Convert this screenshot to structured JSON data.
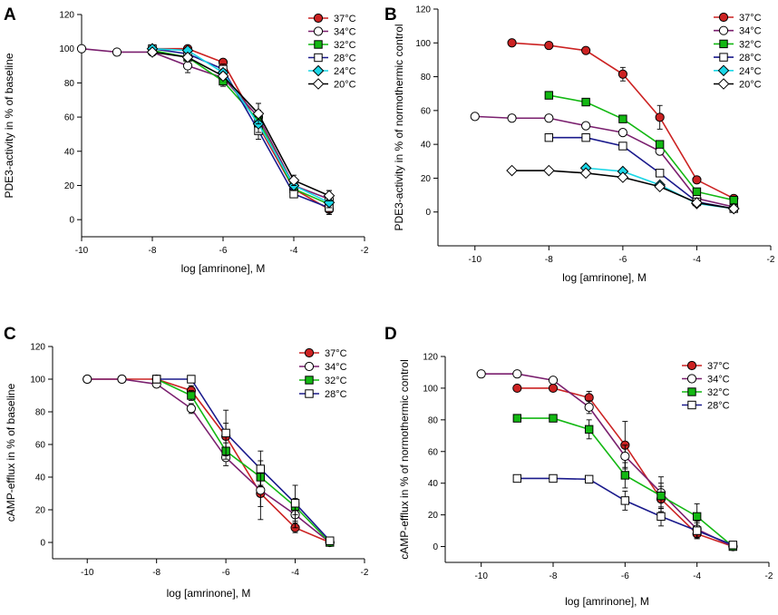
{
  "colors": {
    "37": "#cc2222",
    "34": "#7a1f6e",
    "32": "#13b813",
    "28": "#1a1a8c",
    "24": "#1ad6e6",
    "20": "#000000"
  },
  "chart_data": [
    {
      "panel": "A",
      "type": "line",
      "xlabel": "log [amrinone], M",
      "ylabel": "PDE3-activity in % of baseline",
      "xlim": [
        -10,
        -2
      ],
      "ylim": [
        -10,
        120
      ],
      "xticks": [
        -10,
        -8,
        -6,
        -4,
        -2
      ],
      "yticks": [
        0,
        20,
        40,
        60,
        80,
        100,
        120
      ],
      "series": [
        {
          "name": "37°C",
          "key": "37",
          "marker": "circle",
          "fill": "solid",
          "x": [
            -8,
            -7,
            -6,
            -5,
            -4,
            -3
          ],
          "y": [
            100,
            100,
            92,
            55,
            18,
            6
          ],
          "err": [
            0,
            0,
            2,
            5,
            3,
            3
          ]
        },
        {
          "name": "34°C",
          "key": "34",
          "marker": "circle",
          "fill": "open",
          "x": [
            -10,
            -9,
            -8,
            -7,
            -6,
            -5,
            -4,
            -3
          ],
          "y": [
            100,
            98,
            98,
            90,
            83,
            60,
            20,
            12
          ],
          "err": [
            0,
            0,
            0,
            4,
            3,
            8,
            3,
            5
          ]
        },
        {
          "name": "32°C",
          "key": "32",
          "marker": "square",
          "fill": "solid",
          "x": [
            -8,
            -7,
            -6,
            -5,
            -4,
            -3
          ],
          "y": [
            99,
            95,
            81,
            58,
            18,
            9
          ],
          "err": [
            0,
            0,
            3,
            6,
            3,
            3
          ]
        },
        {
          "name": "28°C",
          "key": "28",
          "marker": "square",
          "fill": "open",
          "x": [
            -8,
            -7,
            -6,
            -5,
            -4,
            -3
          ],
          "y": [
            100,
            97,
            88,
            52,
            15,
            7
          ],
          "err": [
            0,
            0,
            3,
            5,
            2,
            3
          ]
        },
        {
          "name": "24°C",
          "key": "24",
          "marker": "diamond",
          "fill": "solid",
          "x": [
            -8,
            -7,
            -6,
            -5,
            -4,
            -3
          ],
          "y": [
            100,
            99,
            86,
            56,
            20,
            10
          ],
          "err": [
            0,
            0,
            2,
            5,
            3,
            3
          ]
        },
        {
          "name": "20°C",
          "key": "20",
          "marker": "diamond",
          "fill": "open",
          "x": [
            -8,
            -7,
            -6,
            -5,
            -4,
            -3
          ],
          "y": [
            98,
            95,
            84,
            62,
            23,
            14
          ],
          "err": [
            0,
            0,
            2,
            6,
            3,
            3
          ]
        }
      ]
    },
    {
      "panel": "B",
      "type": "line",
      "xlabel": "log [amrinone], M",
      "ylabel": "PDE3-activity in % of normothermic control",
      "xlim": [
        -11,
        -2
      ],
      "ylim": [
        -20,
        120
      ],
      "xticks": [
        -10,
        -8,
        -6,
        -4,
        -2
      ],
      "yticks": [
        0,
        20,
        40,
        60,
        80,
        100,
        120
      ],
      "series": [
        {
          "name": "37°C",
          "key": "37",
          "marker": "circle",
          "fill": "solid",
          "x": [
            -9,
            -8,
            -7,
            -6,
            -5,
            -4,
            -3
          ],
          "y": [
            100,
            98.5,
            95.5,
            81.5,
            56,
            19,
            8
          ],
          "err": [
            0,
            0,
            2,
            4,
            7,
            2,
            2
          ]
        },
        {
          "name": "34°C",
          "key": "34",
          "marker": "circle",
          "fill": "open",
          "x": [
            -10,
            -9,
            -8,
            -7,
            -6,
            -5,
            -4,
            -3
          ],
          "y": [
            56.5,
            55.5,
            55.5,
            51,
            47,
            36,
            8,
            3
          ],
          "err": [
            0,
            0,
            0,
            0,
            0,
            0,
            0,
            0
          ]
        },
        {
          "name": "32°C",
          "key": "32",
          "marker": "square",
          "fill": "solid",
          "x": [
            -8,
            -7,
            -6,
            -5,
            -4,
            -3
          ],
          "y": [
            69,
            65,
            55,
            40,
            12,
            7
          ],
          "err": [
            0,
            0,
            0,
            0,
            0,
            0
          ]
        },
        {
          "name": "28°C",
          "key": "28",
          "marker": "square",
          "fill": "open",
          "x": [
            -8,
            -7,
            -6,
            -5,
            -4,
            -3
          ],
          "y": [
            44,
            44,
            39,
            23,
            6,
            2
          ],
          "err": [
            0,
            0,
            0,
            0,
            0,
            0
          ]
        },
        {
          "name": "24°C",
          "key": "24",
          "marker": "diamond",
          "fill": "solid",
          "x": [
            -7,
            -6,
            -5,
            -4,
            -3
          ],
          "y": [
            26,
            24,
            16,
            5,
            2
          ],
          "err": [
            0,
            0,
            0,
            0,
            0
          ]
        },
        {
          "name": "20°C",
          "key": "20",
          "marker": "diamond",
          "fill": "open",
          "x": [
            -9,
            -8,
            -7,
            -6,
            -5,
            -4,
            -3
          ],
          "y": [
            24.5,
            24.5,
            23,
            20.5,
            15,
            5.5,
            2
          ],
          "err": [
            0,
            0,
            0,
            0,
            0,
            0,
            0
          ]
        }
      ]
    },
    {
      "panel": "C",
      "type": "line",
      "xlabel": "log [amrinone], M",
      "ylabel": "cAMP-efflux in % of baseline",
      "xlim": [
        -11,
        -2
      ],
      "ylim": [
        -10,
        120
      ],
      "xticks": [
        -10,
        -8,
        -6,
        -4,
        -2
      ],
      "yticks": [
        0,
        20,
        40,
        60,
        80,
        100,
        120
      ],
      "series": [
        {
          "name": "37°C",
          "key": "37",
          "marker": "circle",
          "fill": "solid",
          "x": [
            -10,
            -9,
            -8,
            -7,
            -6,
            -5,
            -4,
            -3
          ],
          "y": [
            100,
            100,
            100,
            93,
            65,
            30,
            9,
            0
          ],
          "err": [
            0,
            0,
            0,
            3,
            8,
            8,
            3,
            0
          ]
        },
        {
          "name": "34°C",
          "key": "34",
          "marker": "circle",
          "fill": "open",
          "x": [
            -10,
            -9,
            -8,
            -7,
            -6,
            -5,
            -4,
            -3
          ],
          "y": [
            100,
            100,
            97,
            82,
            52,
            32,
            17,
            0
          ],
          "err": [
            0,
            0,
            0,
            3,
            5,
            18,
            8,
            0
          ]
        },
        {
          "name": "32°C",
          "key": "32",
          "marker": "square",
          "fill": "solid",
          "x": [
            -8,
            -7,
            -6,
            -5,
            -4,
            -3
          ],
          "y": [
            100,
            90,
            56,
            40,
            22,
            0
          ],
          "err": [
            0,
            3,
            5,
            5,
            5,
            0
          ]
        },
        {
          "name": "28°C",
          "key": "28",
          "marker": "square",
          "fill": "open",
          "x": [
            -8,
            -7,
            -6,
            -5,
            -4,
            -3
          ],
          "y": [
            100,
            100,
            67,
            45,
            24,
            1
          ],
          "err": [
            0,
            0,
            14,
            11,
            11,
            0
          ]
        }
      ]
    },
    {
      "panel": "D",
      "type": "line",
      "xlabel": "log [amrinone], M",
      "ylabel": "cAMP-efflux in % of normothermic control",
      "xlim": [
        -11,
        -2
      ],
      "ylim": [
        -10,
        120
      ],
      "xticks": [
        -10,
        -8,
        -6,
        -4,
        -2
      ],
      "yticks": [
        0,
        20,
        40,
        60,
        80,
        100,
        120
      ],
      "series": [
        {
          "name": "37°C",
          "key": "37",
          "marker": "circle",
          "fill": "solid",
          "x": [
            -9,
            -8,
            -7,
            -6,
            -5,
            -4,
            -3
          ],
          "y": [
            100,
            100,
            94,
            64,
            30,
            8,
            0
          ],
          "err": [
            0,
            0,
            4,
            15,
            8,
            3,
            0
          ]
        },
        {
          "name": "34°C",
          "key": "34",
          "marker": "circle",
          "fill": "open",
          "x": [
            -10,
            -9,
            -8,
            -7,
            -6,
            -5,
            -4,
            -3
          ],
          "y": [
            109,
            109,
            105,
            88,
            57,
            34,
            11,
            0
          ],
          "err": [
            0,
            0,
            0,
            4,
            7,
            10,
            5,
            0
          ]
        },
        {
          "name": "32°C",
          "key": "32",
          "marker": "square",
          "fill": "solid",
          "x": [
            -9,
            -8,
            -7,
            -6,
            -5,
            -4,
            -3
          ],
          "y": [
            81,
            81,
            74,
            45,
            32,
            19,
            0
          ],
          "err": [
            0,
            0,
            6,
            8,
            8,
            8,
            0
          ]
        },
        {
          "name": "28°C",
          "key": "28",
          "marker": "square",
          "fill": "open",
          "x": [
            -9,
            -8,
            -7,
            -6,
            -5,
            -4,
            -3
          ],
          "y": [
            43,
            43,
            42.5,
            29,
            19,
            10,
            1
          ],
          "err": [
            0,
            0,
            0,
            6,
            6,
            5,
            0
          ]
        }
      ]
    }
  ]
}
